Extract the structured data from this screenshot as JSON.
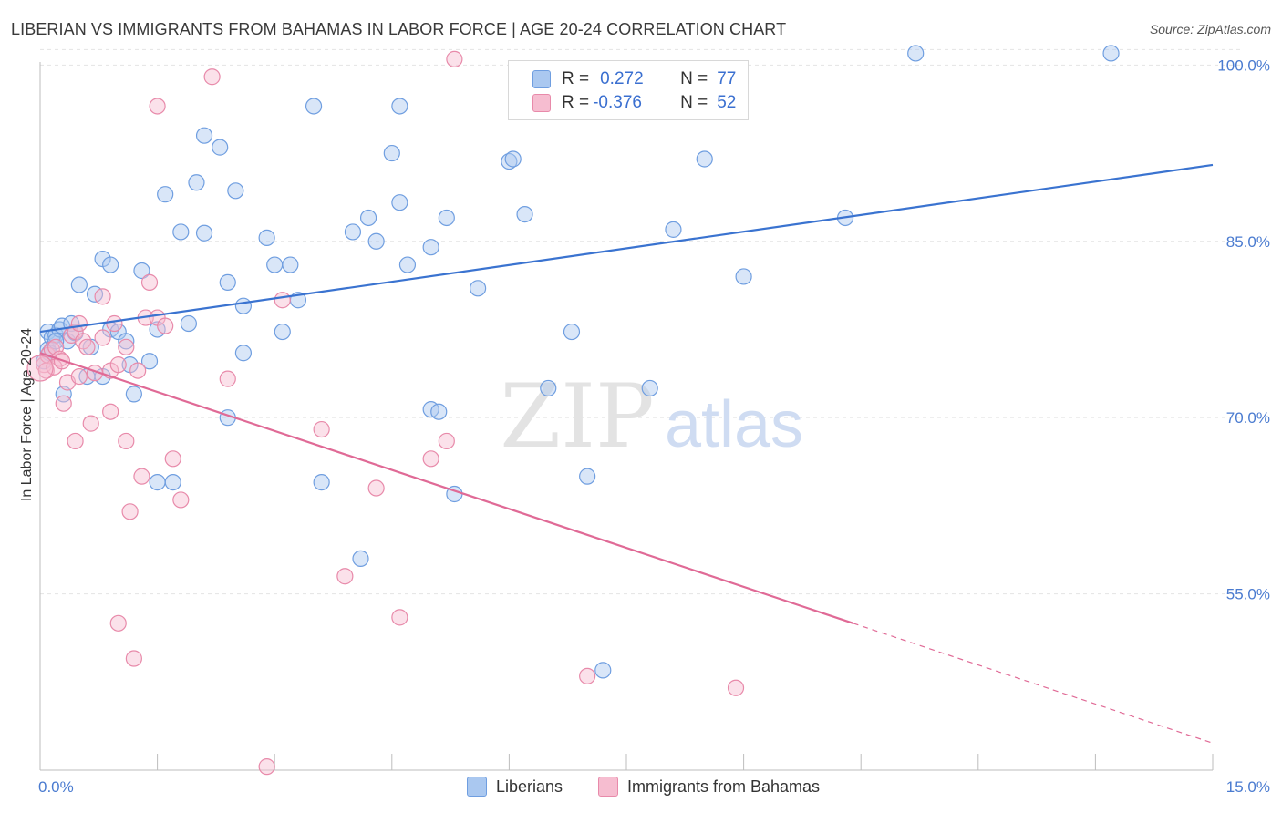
{
  "title": "LIBERIAN VS IMMIGRANTS FROM BAHAMAS IN LABOR FORCE | AGE 20-24 CORRELATION CHART",
  "source": "Source: ZipAtlas.com",
  "watermark": {
    "zip": "ZIP",
    "atlas": "atlas"
  },
  "legend": {
    "r_label": "R =",
    "n_label": "N =",
    "series": [
      {
        "r": "0.272",
        "n": "77",
        "color": "#aac8f0",
        "edge": "#6f9ee0"
      },
      {
        "r": "-0.376",
        "n": "52",
        "color": "#f6bdd0",
        "edge": "#e88aaa"
      }
    ]
  },
  "chart_data": {
    "type": "scatter",
    "title": "LIBERIAN VS IMMIGRANTS FROM BAHAMAS IN LABOR FORCE | AGE 20-24 CORRELATION CHART",
    "xlabel": "",
    "ylabel": "In Labor Force | Age 20-24",
    "xlim": [
      0,
      15
    ],
    "ylim": [
      40,
      101.5
    ],
    "x_tick_labels": [
      "0.0%",
      "15.0%"
    ],
    "y_ticks": [
      55,
      70,
      85,
      100
    ],
    "y_tick_labels": [
      "55.0%",
      "70.0%",
      "85.0%",
      "100.0%"
    ],
    "grid": true,
    "legend_position": "bottom",
    "series": [
      {
        "name": "Liberians",
        "color": "#6f9ee0",
        "fill": "#aac8f0",
        "trend": {
          "x": [
            0,
            15
          ],
          "y": [
            77.3,
            91.5
          ],
          "color": "#3a73d0"
        },
        "points": [
          [
            0.1,
            77.3
          ],
          [
            0.1,
            75.8
          ],
          [
            0.15,
            76.8
          ],
          [
            0.2,
            77.0
          ],
          [
            0.25,
            77.5
          ],
          [
            0.28,
            77.8
          ],
          [
            0.3,
            72.0
          ],
          [
            0.35,
            76.5
          ],
          [
            0.4,
            78.0
          ],
          [
            0.45,
            77.2
          ],
          [
            0.5,
            81.3
          ],
          [
            0.6,
            73.5
          ],
          [
            0.65,
            76.0
          ],
          [
            0.7,
            80.5
          ],
          [
            0.8,
            83.5
          ],
          [
            0.8,
            73.5
          ],
          [
            0.9,
            83.0
          ],
          [
            0.9,
            77.5
          ],
          [
            1.0,
            77.3
          ],
          [
            1.1,
            76.5
          ],
          [
            1.15,
            74.5
          ],
          [
            1.2,
            72.0
          ],
          [
            1.3,
            82.5
          ],
          [
            1.4,
            74.8
          ],
          [
            1.5,
            64.5
          ],
          [
            1.5,
            77.5
          ],
          [
            1.6,
            89.0
          ],
          [
            1.7,
            64.5
          ],
          [
            1.9,
            78.0
          ],
          [
            1.8,
            85.8
          ],
          [
            2.0,
            90.0
          ],
          [
            2.1,
            94.0
          ],
          [
            2.1,
            85.7
          ],
          [
            2.3,
            93.0
          ],
          [
            2.4,
            81.5
          ],
          [
            2.4,
            70.0
          ],
          [
            2.5,
            89.3
          ],
          [
            2.6,
            79.5
          ],
          [
            2.6,
            75.5
          ],
          [
            2.9,
            85.3
          ],
          [
            3.0,
            83.0
          ],
          [
            3.1,
            77.3
          ],
          [
            3.2,
            83.0
          ],
          [
            3.3,
            80.0
          ],
          [
            3.5,
            96.5
          ],
          [
            3.6,
            64.5
          ],
          [
            4.0,
            85.8
          ],
          [
            4.1,
            58.0
          ],
          [
            4.2,
            87.0
          ],
          [
            4.3,
            85.0
          ],
          [
            4.5,
            92.5
          ],
          [
            4.6,
            96.5
          ],
          [
            4.6,
            88.3
          ],
          [
            4.7,
            83.0
          ],
          [
            5.0,
            84.5
          ],
          [
            5.0,
            70.7
          ],
          [
            5.1,
            70.5
          ],
          [
            5.2,
            87.0
          ],
          [
            5.3,
            63.5
          ],
          [
            5.6,
            81.0
          ],
          [
            6.0,
            91.8
          ],
          [
            6.05,
            92.0
          ],
          [
            6.2,
            87.3
          ],
          [
            6.5,
            72.5
          ],
          [
            6.8,
            77.3
          ],
          [
            7.0,
            65.0
          ],
          [
            7.2,
            48.5
          ],
          [
            7.8,
            72.5
          ],
          [
            8.1,
            86.0
          ],
          [
            8.5,
            92.0
          ],
          [
            9.0,
            82.0
          ],
          [
            10.3,
            87.0
          ],
          [
            11.2,
            101.0
          ],
          [
            13.7,
            101.0
          ],
          [
            0.05,
            74.8
          ],
          [
            0.12,
            75.5
          ],
          [
            0.2,
            76.5
          ]
        ]
      },
      {
        "name": "Immigrants from Bahamas",
        "color": "#e88aaa",
        "fill": "#f6bdd0",
        "trend": {
          "x": [
            0,
            10.4
          ],
          "y": [
            75.5,
            52.5
          ],
          "color": "#e06a96"
        },
        "trend_dashed": {
          "x": [
            10.4,
            15
          ],
          "y": [
            52.5,
            42.3
          ]
        },
        "points": [
          [
            0.05,
            74.5
          ],
          [
            0.1,
            75.3
          ],
          [
            0.15,
            75.8
          ],
          [
            0.2,
            76.0
          ],
          [
            0.25,
            75.0
          ],
          [
            0.3,
            71.2
          ],
          [
            0.35,
            73.0
          ],
          [
            0.4,
            77.0
          ],
          [
            0.45,
            77.3
          ],
          [
            0.45,
            68.0
          ],
          [
            0.5,
            73.5
          ],
          [
            0.5,
            78.0
          ],
          [
            0.55,
            76.5
          ],
          [
            0.6,
            76.0
          ],
          [
            0.65,
            69.5
          ],
          [
            0.7,
            73.8
          ],
          [
            0.8,
            76.8
          ],
          [
            0.8,
            80.3
          ],
          [
            0.9,
            70.5
          ],
          [
            0.9,
            74.0
          ],
          [
            0.95,
            78.0
          ],
          [
            1.0,
            74.5
          ],
          [
            1.0,
            52.5
          ],
          [
            1.1,
            76.0
          ],
          [
            1.1,
            68.0
          ],
          [
            1.15,
            62.0
          ],
          [
            1.2,
            49.5
          ],
          [
            1.25,
            74.0
          ],
          [
            1.3,
            65.0
          ],
          [
            1.35,
            78.5
          ],
          [
            1.4,
            81.5
          ],
          [
            1.5,
            78.5
          ],
          [
            1.5,
            96.5
          ],
          [
            1.6,
            77.8
          ],
          [
            1.7,
            66.5
          ],
          [
            1.8,
            63.0
          ],
          [
            2.2,
            99.0
          ],
          [
            2.4,
            73.3
          ],
          [
            2.9,
            40.3
          ],
          [
            3.1,
            80.0
          ],
          [
            3.6,
            69.0
          ],
          [
            3.9,
            56.5
          ],
          [
            4.3,
            64.0
          ],
          [
            4.6,
            53.0
          ],
          [
            5.0,
            66.5
          ],
          [
            5.2,
            68.0
          ],
          [
            5.3,
            100.5
          ],
          [
            7.0,
            48.0
          ],
          [
            8.9,
            47.0
          ],
          [
            0.08,
            74.0
          ],
          [
            0.18,
            74.3
          ],
          [
            0.28,
            74.8
          ]
        ]
      }
    ]
  },
  "bottom_legend": [
    {
      "label": "Liberians",
      "color": "#aac8f0",
      "edge": "#6f9ee0"
    },
    {
      "label": "Immigrants from Bahamas",
      "color": "#f6bdd0",
      "edge": "#e88aaa"
    }
  ]
}
